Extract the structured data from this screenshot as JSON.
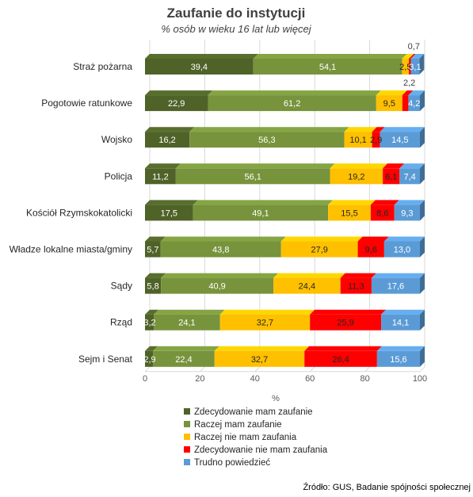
{
  "chart_data": {
    "type": "bar",
    "orientation": "horizontal",
    "stacked": true,
    "title": "Zaufanie do instytucji",
    "subtitle": "% osób w wieku 16 lat lub więcej",
    "xlabel": "%",
    "xlim": [
      0,
      100
    ],
    "xticks": [
      "0",
      "20",
      "40",
      "60",
      "80",
      "100"
    ],
    "categories": [
      "Straż pożarna",
      "Pogotowie ratunkowe",
      "Wojsko",
      "Policja",
      "Kościół Rzymskokatolicki",
      "Władze lokalne miasta/gminy",
      "Sądy",
      "Rząd",
      "Sejm i Senat"
    ],
    "series": [
      {
        "name": "Zdecydowanie mam zaufanie",
        "color": "#4f6228",
        "values": [
          39.4,
          22.9,
          16.2,
          11.2,
          17.5,
          5.7,
          5.8,
          3.2,
          2.9
        ]
      },
      {
        "name": "Raczej mam zaufanie",
        "color": "#77933c",
        "values": [
          54.1,
          61.2,
          56.3,
          56.1,
          49.1,
          43.8,
          40.9,
          24.1,
          22.4
        ]
      },
      {
        "name": "Raczej nie mam zaufania",
        "color": "#ffc000",
        "values": [
          2.5,
          9.5,
          10.1,
          19.2,
          15.5,
          27.9,
          24.4,
          32.7,
          32.7
        ]
      },
      {
        "name": "Zdecydowanie nie mam zaufania",
        "color": "#ff0000",
        "values": [
          0.7,
          2.2,
          2.9,
          6.1,
          8.6,
          9.6,
          11.3,
          25.9,
          26.4
        ]
      },
      {
        "name": "Trudno powiedzieć",
        "color": "#5b9bd5",
        "values": [
          3.1,
          4.2,
          14.5,
          7.4,
          9.3,
          13.0,
          17.6,
          14.1,
          15.6
        ]
      }
    ],
    "labels": [
      [
        "39,4",
        "54,1",
        "2,5",
        "0,7",
        "3,1"
      ],
      [
        "22,9",
        "61,2",
        "9,5",
        "2,2",
        "4,2"
      ],
      [
        "16,2",
        "56,3",
        "10,1",
        "2,9",
        "14,5"
      ],
      [
        "11,2",
        "56,1",
        "19,2",
        "6,1",
        "7,4"
      ],
      [
        "17,5",
        "49,1",
        "15,5",
        "8,6",
        "9,3"
      ],
      [
        "5,7",
        "43,8",
        "27,9",
        "9,6",
        "13,0"
      ],
      [
        "5,8",
        "40,9",
        "24,4",
        "11,3",
        "17,6"
      ],
      [
        "3,2",
        "24,1",
        "32,7",
        "25,9",
        "14,1"
      ],
      [
        "2,9",
        "22,4",
        "32,7",
        "26,4",
        "15,6"
      ]
    ],
    "grid": true,
    "legend_position": "bottom"
  },
  "source": "Źródło: GUS, Badanie spójności społecznej"
}
